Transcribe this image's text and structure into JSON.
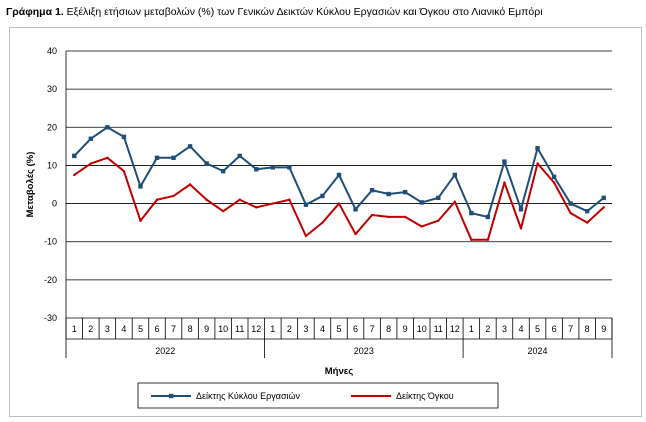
{
  "title": {
    "label": "Γράφημα 1.",
    "text": "Εξέλιξη ετήσιων μεταβολών (%) των Γενικών Δεικτών Κύκλου Εργασιών και Όγκου στο Λιανικό Εμπόρι"
  },
  "chart_data": {
    "type": "line",
    "ylabel": "Μεταβολές (%)",
    "xlabel": "Μήνες",
    "ylim": [
      -30,
      40
    ],
    "yticks": [
      40,
      30,
      20,
      10,
      0,
      -10,
      -20,
      -30
    ],
    "grid": "horizontal",
    "legend_position": "bottom",
    "years": [
      {
        "label": "2022",
        "months": 12
      },
      {
        "label": "2023",
        "months": 12
      },
      {
        "label": "2024",
        "months": 9
      }
    ],
    "categories": [
      "1",
      "2",
      "3",
      "4",
      "5",
      "6",
      "7",
      "8",
      "9",
      "10",
      "11",
      "12",
      "1",
      "2",
      "3",
      "4",
      "5",
      "6",
      "7",
      "8",
      "9",
      "10",
      "11",
      "12",
      "1",
      "2",
      "3",
      "4",
      "5",
      "6",
      "7",
      "8",
      "9"
    ],
    "series": [
      {
        "name": "Δείκτης Κύκλου Εργασιών",
        "color": "#1f4e79",
        "values": [
          12.5,
          17,
          20,
          17.5,
          4.5,
          12,
          12,
          15,
          10.5,
          8.5,
          12.5,
          9,
          9.5,
          9.5,
          -0.3,
          2,
          7.5,
          -1.5,
          3.5,
          2.5,
          3,
          0.3,
          1.5,
          7.5,
          -2.5,
          -3.5,
          11,
          -1.5,
          14.5,
          7,
          0,
          -2,
          1.5
        ]
      },
      {
        "name": "Δείκτης Όγκου",
        "color": "#c00000",
        "values": [
          7.5,
          10.5,
          12,
          8.5,
          -4.5,
          1,
          2,
          5,
          1,
          -2,
          1,
          -1,
          0,
          1,
          -8.5,
          -5,
          0,
          -8,
          -3,
          -3.5,
          -3.5,
          -6,
          -4.5,
          0.5,
          -9.5,
          -9.5,
          5.5,
          -6.5,
          10.5,
          5.5,
          -2.5,
          -5,
          -1
        ]
      }
    ]
  }
}
